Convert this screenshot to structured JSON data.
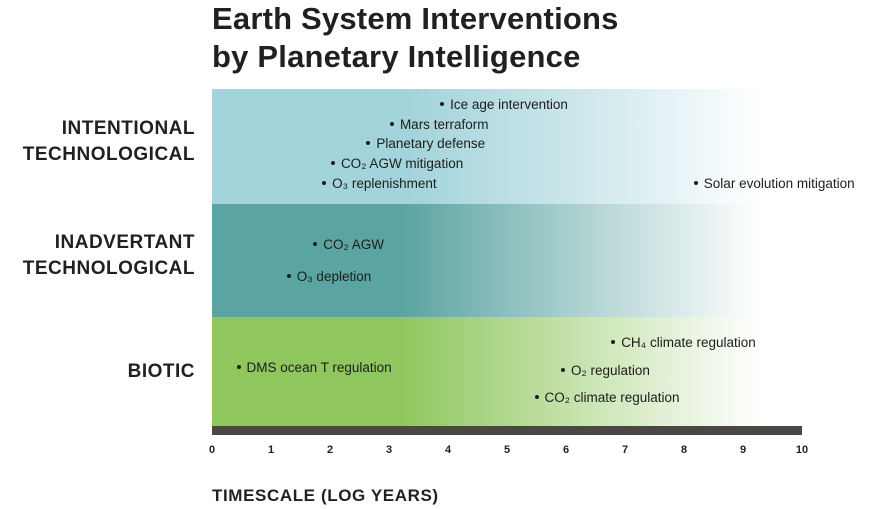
{
  "title": {
    "line1": "Earth System Interventions",
    "line2": "by Planetary Intelligence"
  },
  "categories": [
    {
      "id": "intentional",
      "line1": "INTENTIONAL",
      "line2": "TECHNOLOGICAL"
    },
    {
      "id": "inadvertant",
      "line1": "INADVERTANT",
      "line2": "TECHNOLOGICAL"
    },
    {
      "id": "biotic",
      "line1": "BIOTIC"
    }
  ],
  "items": [
    {
      "label": "Ice age intervention",
      "category": "intentional",
      "log_years": 3.9
    },
    {
      "label": "Mars terraform",
      "category": "intentional",
      "log_years": 3.05
    },
    {
      "label": "Planetary defense",
      "category": "intentional",
      "log_years": 2.65
    },
    {
      "label": "CO₂ AGW mitigation",
      "category": "intentional",
      "log_years": 2.05
    },
    {
      "label": "O₃ replenishment",
      "category": "intentional",
      "log_years": 1.9
    },
    {
      "label": "Solar evolution mitigation",
      "category": "intentional",
      "log_years": 8.2
    },
    {
      "label": "CO₂ AGW",
      "category": "inadvertant",
      "log_years": 1.75
    },
    {
      "label": "O₃ depletion",
      "category": "inadvertant",
      "log_years": 1.3
    },
    {
      "label": "DMS ocean T regulation",
      "category": "biotic",
      "log_years": 0.45
    },
    {
      "label": "CH₄ climate regulation",
      "category": "biotic",
      "log_years": 6.8
    },
    {
      "label": "O₂ regulation",
      "category": "biotic",
      "log_years": 5.95
    },
    {
      "label": "CO₂ climate regulation",
      "category": "biotic",
      "log_years": 5.5
    }
  ],
  "axis": {
    "ticks": [
      "0",
      "1",
      "2",
      "3",
      "4",
      "5",
      "6",
      "7",
      "8",
      "9",
      "10"
    ],
    "label": "TIMESCALE (LOG YEARS)",
    "range": [
      0,
      10
    ]
  },
  "colors": {
    "intentional": "#a3d3db",
    "inadvertant": "#5aa4a1",
    "biotic": "#8fc75e",
    "axis_bar": "#4a4745"
  }
}
